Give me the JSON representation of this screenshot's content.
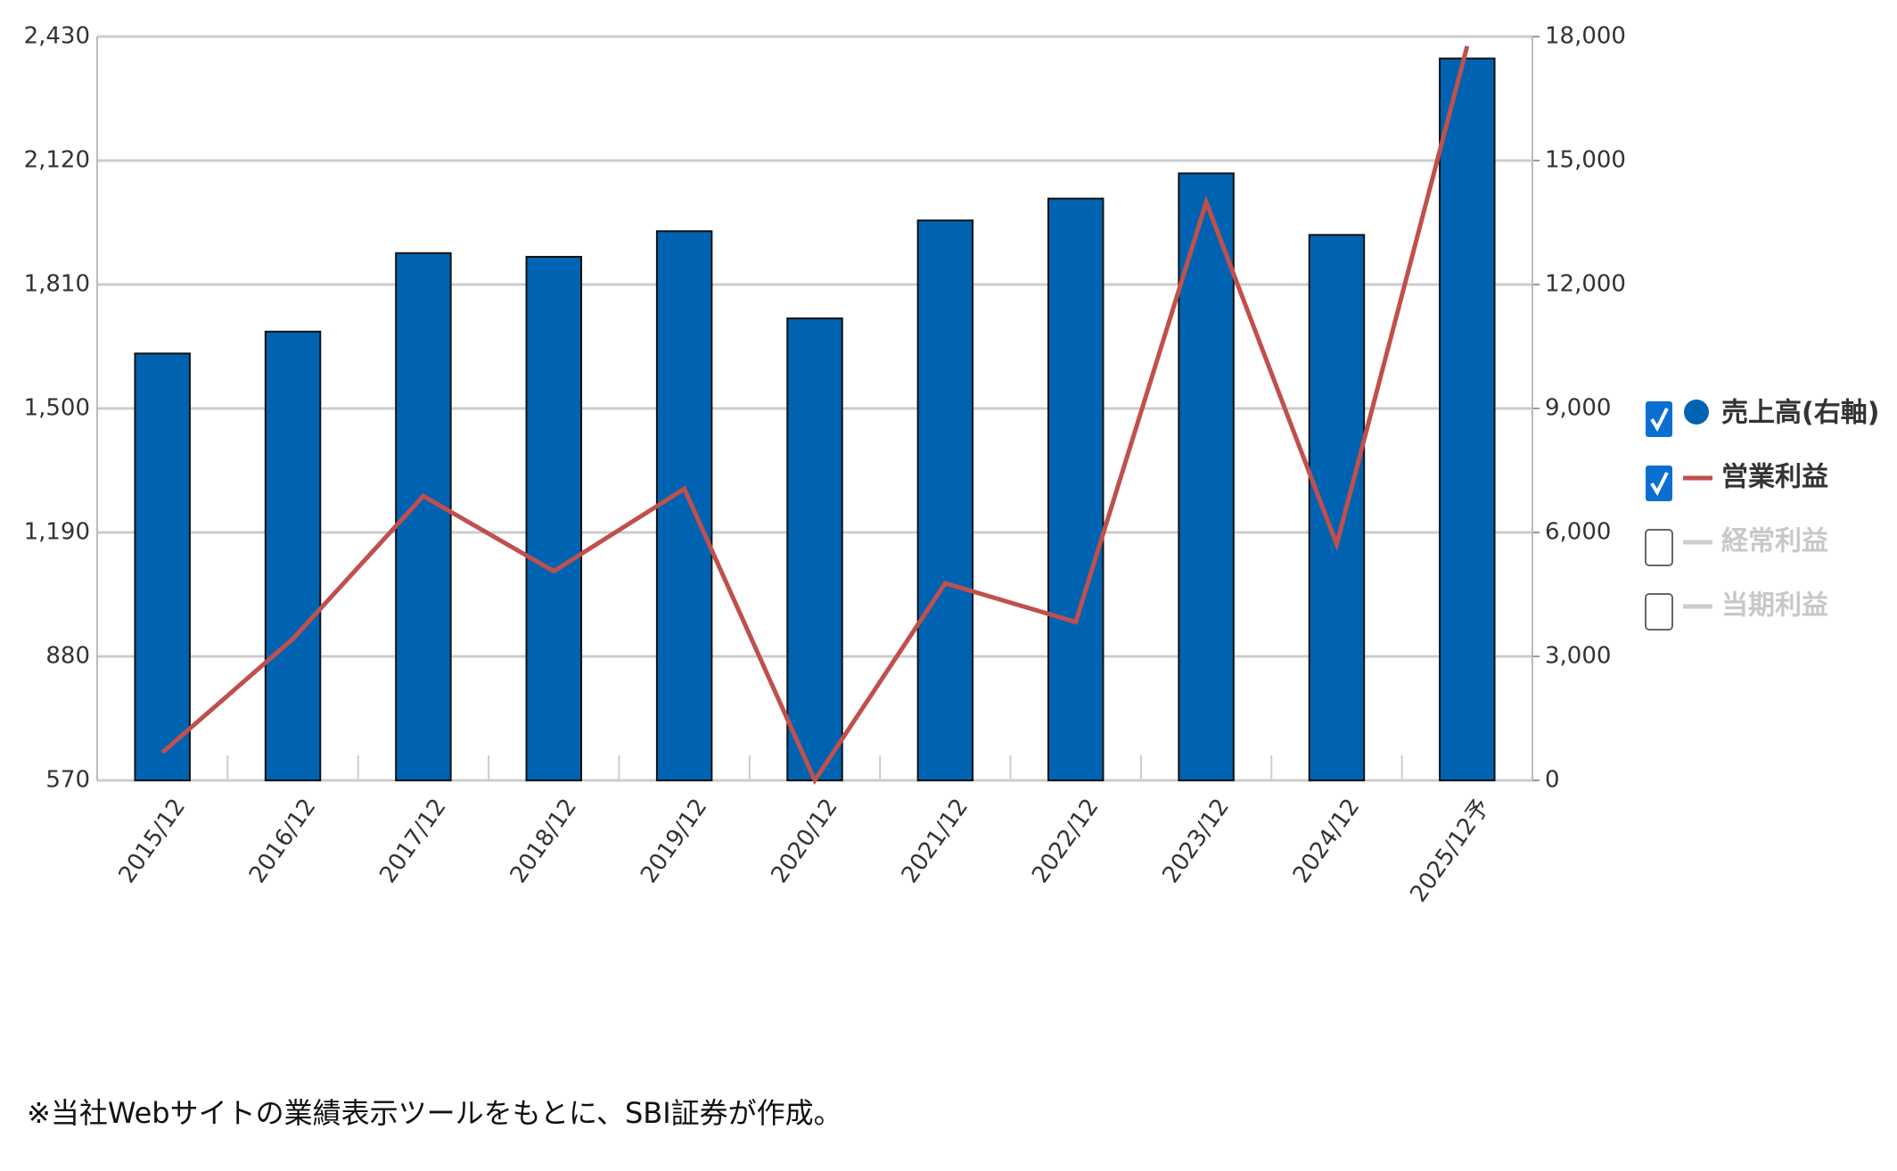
{
  "chart_data": {
    "type": "bar_line",
    "categories": [
      "2015/12",
      "2016/12",
      "2017/12",
      "2018/12",
      "2019/12",
      "2020/12",
      "2021/12",
      "2022/12",
      "2023/12",
      "2024/12",
      "2025/12予"
    ],
    "series": [
      {
        "name": "売上高(右軸)",
        "type": "bar",
        "axis": "y2",
        "color": "#0063b1",
        "values": [
          10330,
          10860,
          12760,
          12670,
          13290,
          11180,
          13550,
          14080,
          14690,
          13200,
          17470
        ]
      },
      {
        "name": "営業利益",
        "type": "line",
        "color": "#c0504d",
        "values": [
          640,
          924,
          1281,
          1093,
          1299,
          570,
          1063,
          966,
          2016,
          1160,
          2406
        ]
      }
    ],
    "inactive_legend": [
      "経常利益",
      "当期利益"
    ],
    "ylim": [
      570,
      2430
    ],
    "yticks": [
      570,
      880,
      {
        "value": 1190,
        "label": "1,190"
      },
      {
        "value": 1500,
        "label": "1,500"
      },
      {
        "value": 1810,
        "label": "1,810"
      },
      {
        "value": 2120,
        "label": "2,120"
      },
      {
        "value": 2430,
        "label": "2,430"
      }
    ],
    "y2lim": [
      0,
      18000
    ],
    "y2ticks": [
      0,
      {
        "value": 3000,
        "label": "3,000"
      },
      {
        "value": 6000,
        "label": "6,000"
      },
      {
        "value": 9000,
        "label": "9,000"
      },
      {
        "value": 12000,
        "label": "12,000"
      },
      {
        "value": 15000,
        "label": "15,000"
      },
      {
        "value": 18000,
        "label": "18,000"
      }
    ],
    "grid": true,
    "legend_position": "right",
    "note": "※当社Webサイトの業績表示ツールをもとに、SBI証券が作成。"
  }
}
